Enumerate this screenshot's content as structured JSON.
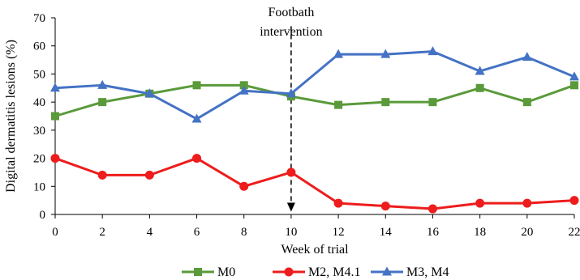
{
  "chart_data": {
    "type": "line",
    "xlabel": "Week of trial",
    "ylabel": "Digital dermatitis lesions (%)",
    "xlim": [
      0,
      22
    ],
    "ylim": [
      0,
      70
    ],
    "x_ticks": [
      "0",
      "2",
      "4",
      "6",
      "8",
      "10",
      "12",
      "14",
      "16",
      "18",
      "20",
      "22"
    ],
    "y_ticks": [
      "0",
      "10",
      "20",
      "30",
      "40",
      "50",
      "60",
      "70"
    ],
    "x": [
      0,
      2,
      4,
      6,
      8,
      10,
      12,
      14,
      16,
      18,
      20,
      22
    ],
    "grid": false,
    "legend_position": "bottom",
    "series": [
      {
        "name": "M0",
        "color": "#5a9a3a",
        "marker": "square",
        "values": [
          35,
          40,
          43,
          46,
          46,
          42,
          39,
          40,
          40,
          45,
          40,
          46
        ]
      },
      {
        "name": "M2, M4.1",
        "color": "#ee1c1c",
        "marker": "circle",
        "values": [
          20,
          14,
          14,
          20,
          10,
          15,
          4,
          3,
          2,
          4,
          4,
          5
        ]
      },
      {
        "name": "M3, M4",
        "color": "#4472c4",
        "marker": "triangle",
        "values": [
          45,
          46,
          43,
          34,
          44,
          43,
          57,
          57,
          58,
          51,
          56,
          49
        ]
      }
    ],
    "annotation": {
      "line1": "Footbath",
      "line2": "intervention",
      "at_x": 10,
      "from_y": 67,
      "to_y": 1
    }
  }
}
